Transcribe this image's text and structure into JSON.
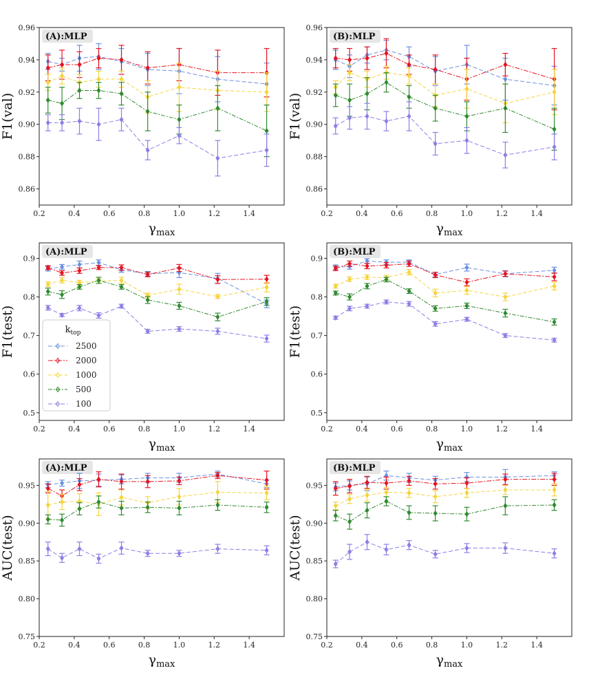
{
  "colors": {
    "2500": "#6a8fe0",
    "2000": "#e8121f",
    "1000": "#f5d43b",
    "500": "#2f8a2f",
    "100": "#8a7fe6"
  },
  "legend": {
    "title": "k_top",
    "title_main": "k",
    "title_sub": "top",
    "entries": [
      "2500",
      "2000",
      "1000",
      "500",
      "100"
    ]
  },
  "chart_data": [
    {
      "type": "line",
      "panel": "A1",
      "title": "(A):MLP",
      "xlabel": "γ",
      "xlabel_sub": "max",
      "ylabel": "F1(val)",
      "xlim": [
        0.2,
        1.6
      ],
      "ylim": [
        0.85,
        0.96
      ],
      "xticks": [
        0.2,
        0.4,
        0.6,
        0.8,
        1.0,
        1.2,
        1.4
      ],
      "xtick_labels": [
        "0.2",
        "0.4",
        "0.6",
        "0.8",
        "1.0",
        "1.2",
        "1.4"
      ],
      "yticks": [
        0.86,
        0.88,
        0.9,
        0.92,
        0.94,
        0.96
      ],
      "ytick_labels": [
        "0.86",
        "0.88",
        "0.90",
        "0.92",
        "0.94",
        "0.96"
      ],
      "x": [
        0.25,
        0.33,
        0.43,
        0.54,
        0.67,
        0.82,
        1.0,
        1.22,
        1.5
      ],
      "series": [
        {
          "name": "2500",
          "values": [
            0.939,
            0.937,
            0.941,
            0.942,
            0.939,
            0.934,
            0.933,
            0.928,
            0.925
          ],
          "errors": [
            0.005,
            0.004,
            0.008,
            0.008,
            0.008,
            0.01,
            0.014,
            0.014,
            0.013
          ]
        },
        {
          "name": "2000",
          "values": [
            0.935,
            0.937,
            0.937,
            0.941,
            0.94,
            0.935,
            0.937,
            0.932,
            0.932
          ],
          "errors": [
            0.008,
            0.009,
            0.008,
            0.006,
            0.009,
            0.01,
            0.01,
            0.014,
            0.015
          ]
        },
        {
          "name": "1000",
          "values": [
            0.926,
            0.93,
            0.926,
            0.928,
            0.928,
            0.917,
            0.923,
            0.921,
            0.92
          ],
          "errors": [
            0.005,
            0.005,
            0.005,
            0.005,
            0.005,
            0.01,
            0.015,
            0.012,
            0.012
          ]
        },
        {
          "name": "500",
          "values": [
            0.915,
            0.913,
            0.921,
            0.921,
            0.919,
            0.908,
            0.903,
            0.91,
            0.896
          ],
          "errors": [
            0.008,
            0.01,
            0.005,
            0.005,
            0.007,
            0.012,
            0.009,
            0.014,
            0.016
          ]
        },
        {
          "name": "100",
          "values": [
            0.901,
            0.901,
            0.902,
            0.9,
            0.903,
            0.884,
            0.893,
            0.879,
            0.884
          ],
          "errors": [
            0.005,
            0.005,
            0.008,
            0.01,
            0.007,
            0.006,
            0.005,
            0.011,
            0.01
          ]
        }
      ]
    },
    {
      "type": "line",
      "panel": "B1",
      "title": "(B):MLP",
      "xlabel": "γ",
      "xlabel_sub": "max",
      "ylabel": "F1(val)",
      "xlim": [
        0.2,
        1.6
      ],
      "ylim": [
        0.85,
        0.96
      ],
      "xticks": [
        0.2,
        0.4,
        0.6,
        0.8,
        1.0,
        1.2,
        1.4
      ],
      "xtick_labels": [
        "0.2",
        "0.4",
        "0.6",
        "0.8",
        "1.0",
        "1.2",
        "1.4"
      ],
      "yticks": [
        0.86,
        0.88,
        0.9,
        0.92,
        0.94,
        0.96
      ],
      "ytick_labels": [
        "0.86",
        "0.88",
        "0.90",
        "0.92",
        "0.94",
        "0.96"
      ],
      "x": [
        0.25,
        0.33,
        0.43,
        0.54,
        0.67,
        0.82,
        1.0,
        1.22,
        1.5
      ],
      "series": [
        {
          "name": "2500",
          "values": [
            0.94,
            0.936,
            0.943,
            0.946,
            0.942,
            0.933,
            0.937,
            0.928,
            0.924
          ],
          "errors": [
            0.006,
            0.007,
            0.005,
            0.006,
            0.006,
            0.009,
            0.012,
            0.013,
            0.012
          ]
        },
        {
          "name": "2000",
          "values": [
            0.941,
            0.94,
            0.941,
            0.944,
            0.937,
            0.934,
            0.928,
            0.937,
            0.928
          ],
          "errors": [
            0.006,
            0.007,
            0.007,
            0.009,
            0.006,
            0.009,
            0.013,
            0.007,
            0.019
          ]
        },
        {
          "name": "1000",
          "values": [
            0.923,
            0.932,
            0.928,
            0.932,
            0.93,
            0.918,
            0.922,
            0.913,
            0.92
          ],
          "errors": [
            0.004,
            0.005,
            0.005,
            0.004,
            0.005,
            0.007,
            0.012,
            0.012,
            0.014
          ]
        },
        {
          "name": "500",
          "values": [
            0.918,
            0.915,
            0.919,
            0.926,
            0.917,
            0.91,
            0.905,
            0.91,
            0.897
          ],
          "errors": [
            0.007,
            0.01,
            0.01,
            0.006,
            0.007,
            0.008,
            0.009,
            0.015,
            0.013
          ]
        },
        {
          "name": "100",
          "values": [
            0.899,
            0.904,
            0.905,
            0.902,
            0.905,
            0.888,
            0.89,
            0.881,
            0.886
          ],
          "errors": [
            0.005,
            0.007,
            0.008,
            0.006,
            0.009,
            0.007,
            0.008,
            0.008,
            0.008
          ]
        }
      ]
    },
    {
      "type": "line",
      "panel": "A2",
      "title": "(A):MLP",
      "xlabel": "γ",
      "xlabel_sub": "max",
      "ylabel": "F1(test)",
      "xlim": [
        0.2,
        1.6
      ],
      "ylim": [
        0.48,
        0.94
      ],
      "xticks": [
        0.2,
        0.4,
        0.6,
        0.8,
        1.0,
        1.2,
        1.4
      ],
      "xtick_labels": [
        "0.2",
        "0.4",
        "0.6",
        "0.8",
        "1.0",
        "1.2",
        "1.4"
      ],
      "yticks": [
        0.5,
        0.6,
        0.7,
        0.8,
        0.9
      ],
      "ytick_labels": [
        "0.5",
        "0.6",
        "0.7",
        "0.8",
        "0.9"
      ],
      "x": [
        0.25,
        0.33,
        0.43,
        0.54,
        0.67,
        0.82,
        1.0,
        1.22,
        1.5
      ],
      "series": [
        {
          "name": "2500",
          "values": [
            0.873,
            0.878,
            0.884,
            0.889,
            0.87,
            0.86,
            0.863,
            0.848,
            0.782
          ],
          "errors": [
            0.006,
            0.006,
            0.009,
            0.007,
            0.006,
            0.006,
            0.013,
            0.013,
            0.01
          ]
        },
        {
          "name": "2000",
          "values": [
            0.876,
            0.862,
            0.868,
            0.876,
            0.876,
            0.858,
            0.875,
            0.845,
            0.846
          ],
          "errors": [
            0.005,
            0.006,
            0.007,
            0.005,
            0.007,
            0.006,
            0.009,
            0.01,
            0.01
          ]
        },
        {
          "name": "1000",
          "values": [
            0.833,
            0.843,
            0.837,
            0.841,
            0.843,
            0.804,
            0.82,
            0.801,
            0.825
          ],
          "errors": [
            0.006,
            0.007,
            0.006,
            0.006,
            0.008,
            0.006,
            0.013,
            0.005,
            0.012
          ]
        },
        {
          "name": "500",
          "values": [
            0.814,
            0.806,
            0.826,
            0.843,
            0.826,
            0.792,
            0.777,
            0.748,
            0.788
          ],
          "errors": [
            0.009,
            0.01,
            0.006,
            0.008,
            0.006,
            0.009,
            0.009,
            0.01,
            0.01
          ]
        },
        {
          "name": "100",
          "values": [
            0.772,
            0.753,
            0.771,
            0.752,
            0.776,
            0.711,
            0.717,
            0.711,
            0.692
          ],
          "errors": [
            0.006,
            0.004,
            0.007,
            0.007,
            0.005,
            0.005,
            0.006,
            0.008,
            0.009
          ]
        }
      ]
    },
    {
      "type": "line",
      "panel": "B2",
      "title": "(B):MLP",
      "xlabel": "γ",
      "xlabel_sub": "max",
      "ylabel": "F1(test)",
      "xlim": [
        0.2,
        1.6
      ],
      "ylim": [
        0.48,
        0.94
      ],
      "xticks": [
        0.2,
        0.4,
        0.6,
        0.8,
        1.0,
        1.2,
        1.4
      ],
      "xtick_labels": [
        "0.2",
        "0.4",
        "0.6",
        "0.8",
        "1.0",
        "1.2",
        "1.4"
      ],
      "yticks": [
        0.5,
        0.6,
        0.7,
        0.8,
        0.9
      ],
      "ytick_labels": [
        "0.5",
        "0.6",
        "0.7",
        "0.8",
        "0.9"
      ],
      "x": [
        0.25,
        0.33,
        0.43,
        0.54,
        0.67,
        0.82,
        1.0,
        1.22,
        1.5
      ],
      "series": [
        {
          "name": "2500",
          "values": [
            0.877,
            0.879,
            0.893,
            0.89,
            0.89,
            0.858,
            0.876,
            0.86,
            0.869
          ],
          "errors": [
            0.006,
            0.007,
            0.006,
            0.006,
            0.006,
            0.006,
            0.009,
            0.008,
            0.008
          ]
        },
        {
          "name": "2000",
          "values": [
            0.874,
            0.886,
            0.88,
            0.882,
            0.886,
            0.857,
            0.838,
            0.86,
            0.852
          ],
          "errors": [
            0.006,
            0.007,
            0.007,
            0.007,
            0.007,
            0.007,
            0.009,
            0.007,
            0.01
          ]
        },
        {
          "name": "1000",
          "values": [
            0.828,
            0.846,
            0.851,
            0.85,
            0.864,
            0.81,
            0.817,
            0.8,
            0.828
          ],
          "errors": [
            0.005,
            0.006,
            0.006,
            0.006,
            0.007,
            0.01,
            0.01,
            0.01,
            0.01
          ]
        },
        {
          "name": "500",
          "values": [
            0.81,
            0.8,
            0.828,
            0.845,
            0.815,
            0.77,
            0.777,
            0.758,
            0.735
          ],
          "errors": [
            0.005,
            0.008,
            0.007,
            0.006,
            0.006,
            0.007,
            0.007,
            0.01,
            0.008
          ]
        },
        {
          "name": "100",
          "values": [
            0.746,
            0.77,
            0.776,
            0.787,
            0.782,
            0.73,
            0.742,
            0.7,
            0.688
          ],
          "errors": [
            0.004,
            0.006,
            0.005,
            0.005,
            0.006,
            0.006,
            0.005,
            0.005,
            0.005
          ]
        }
      ]
    },
    {
      "type": "line",
      "panel": "A3",
      "title": "(A):MLP",
      "xlabel": "γ",
      "xlabel_sub": "max",
      "ylabel": "AUC(test)",
      "xlim": [
        0.2,
        1.6
      ],
      "ylim": [
        0.75,
        0.985
      ],
      "xticks": [
        0.2,
        0.4,
        0.6,
        0.8,
        1.0,
        1.2,
        1.4
      ],
      "xtick_labels": [
        "0.2",
        "0.4",
        "0.6",
        "0.8",
        "1.0",
        "1.2",
        "1.4"
      ],
      "yticks": [
        0.75,
        0.8,
        0.85,
        0.9,
        0.95
      ],
      "ytick_labels": [
        "0.75",
        "0.80",
        "0.85",
        "0.90",
        "0.95"
      ],
      "x": [
        0.25,
        0.33,
        0.43,
        0.54,
        0.67,
        0.82,
        1.0,
        1.22,
        1.5
      ],
      "series": [
        {
          "name": "2500",
          "values": [
            0.951,
            0.953,
            0.956,
            0.957,
            0.958,
            0.96,
            0.96,
            0.965,
            0.952
          ],
          "errors": [
            0.004,
            0.004,
            0.01,
            0.008,
            0.006,
            0.006,
            0.006,
            0.004,
            0.005
          ]
        },
        {
          "name": "2000",
          "values": [
            0.946,
            0.936,
            0.951,
            0.958,
            0.955,
            0.955,
            0.956,
            0.963,
            0.957
          ],
          "errors": [
            0.006,
            0.008,
            0.008,
            0.01,
            0.01,
            0.008,
            0.005,
            0.004,
            0.012
          ]
        },
        {
          "name": "1000",
          "values": [
            0.924,
            0.928,
            0.929,
            0.925,
            0.934,
            0.927,
            0.935,
            0.941,
            0.94
          ],
          "errors": [
            0.018,
            0.01,
            0.01,
            0.015,
            0.01,
            0.008,
            0.011,
            0.014,
            0.009
          ]
        },
        {
          "name": "500",
          "values": [
            0.905,
            0.904,
            0.919,
            0.928,
            0.92,
            0.921,
            0.92,
            0.924,
            0.921
          ],
          "errors": [
            0.006,
            0.008,
            0.008,
            0.008,
            0.009,
            0.007,
            0.009,
            0.007,
            0.007
          ]
        },
        {
          "name": "100",
          "values": [
            0.866,
            0.854,
            0.866,
            0.853,
            0.867,
            0.86,
            0.86,
            0.866,
            0.864
          ],
          "errors": [
            0.009,
            0.006,
            0.009,
            0.006,
            0.008,
            0.004,
            0.004,
            0.006,
            0.006
          ]
        }
      ]
    },
    {
      "type": "line",
      "panel": "B3",
      "title": "(B):MLP",
      "xlabel": "γ",
      "xlabel_sub": "max",
      "ylabel": "AUC(test)",
      "xlim": [
        0.2,
        1.6
      ],
      "ylim": [
        0.75,
        0.985
      ],
      "xticks": [
        0.2,
        0.4,
        0.6,
        0.8,
        1.0,
        1.2,
        1.4
      ],
      "xtick_labels": [
        "0.2",
        "0.4",
        "0.6",
        "0.8",
        "1.0",
        "1.2",
        "1.4"
      ],
      "yticks": [
        0.75,
        0.8,
        0.85,
        0.9,
        0.95
      ],
      "ytick_labels": [
        "0.75",
        "0.80",
        "0.85",
        "0.90",
        "0.95"
      ],
      "x": [
        0.25,
        0.33,
        0.43,
        0.54,
        0.67,
        0.82,
        1.0,
        1.22,
        1.5
      ],
      "series": [
        {
          "name": "2500",
          "values": [
            0.948,
            0.95,
            0.952,
            0.963,
            0.96,
            0.957,
            0.961,
            0.961,
            0.963
          ],
          "errors": [
            0.005,
            0.006,
            0.009,
            0.006,
            0.006,
            0.005,
            0.006,
            0.01,
            0.005
          ]
        },
        {
          "name": "2000",
          "values": [
            0.946,
            0.949,
            0.954,
            0.953,
            0.956,
            0.952,
            0.953,
            0.958,
            0.958
          ],
          "errors": [
            0.009,
            0.009,
            0.008,
            0.008,
            0.006,
            0.007,
            0.007,
            0.007,
            0.008
          ]
        },
        {
          "name": "1000",
          "values": [
            0.923,
            0.932,
            0.937,
            0.941,
            0.94,
            0.935,
            0.94,
            0.944,
            0.944
          ],
          "errors": [
            0.005,
            0.006,
            0.008,
            0.006,
            0.006,
            0.008,
            0.006,
            0.006,
            0.008
          ]
        },
        {
          "name": "500",
          "values": [
            0.91,
            0.902,
            0.917,
            0.929,
            0.914,
            0.913,
            0.912,
            0.923,
            0.924
          ],
          "errors": [
            0.007,
            0.01,
            0.01,
            0.006,
            0.009,
            0.01,
            0.009,
            0.012,
            0.007
          ]
        },
        {
          "name": "100",
          "values": [
            0.846,
            0.862,
            0.875,
            0.865,
            0.871,
            0.859,
            0.867,
            0.867,
            0.86
          ],
          "errors": [
            0.005,
            0.01,
            0.01,
            0.007,
            0.006,
            0.005,
            0.006,
            0.007,
            0.006
          ]
        }
      ]
    }
  ]
}
